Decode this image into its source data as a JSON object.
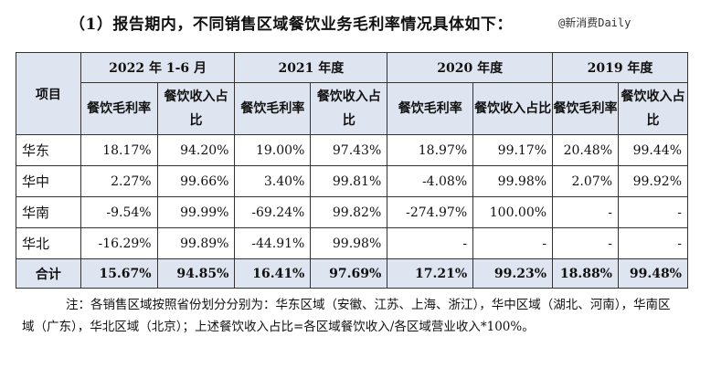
{
  "title": "（1）报告期内，不同销售区域餐饮业务毛利率情况具体如下：",
  "watermark": "@新消费Daily",
  "table": {
    "item_header": "项目",
    "periods": [
      "2022 年 1-6 月",
      "2021 年度",
      "2020 年度",
      "2019 年度"
    ],
    "subheaders": [
      "餐饮毛利率",
      "餐饮收入占比",
      "餐饮毛利率",
      "餐饮收入占比",
      "餐饮毛利率",
      "餐饮收入占比",
      "餐饮毛利率",
      "餐饮收入占比"
    ],
    "rows": [
      {
        "region": "华东",
        "values": [
          "18.17%",
          "94.20%",
          "19.00%",
          "97.43%",
          "18.97%",
          "99.17%",
          "20.48%",
          "99.44%"
        ]
      },
      {
        "region": "华中",
        "values": [
          "2.27%",
          "99.66%",
          "3.40%",
          "99.81%",
          "-4.08%",
          "99.98%",
          "2.07%",
          "99.92%"
        ]
      },
      {
        "region": "华南",
        "values": [
          "-9.54%",
          "99.99%",
          "-69.24%",
          "99.82%",
          "-274.97%",
          "100.00%",
          "-",
          "-"
        ]
      },
      {
        "region": "华北",
        "values": [
          "-16.29%",
          "99.89%",
          "-44.91%",
          "99.98%",
          "-",
          "-",
          "-",
          "-"
        ]
      }
    ],
    "total": {
      "region": "合计",
      "values": [
        "15.67%",
        "94.85%",
        "16.41%",
        "97.69%",
        "17.21%",
        "99.23%",
        "18.88%",
        "99.48%"
      ]
    }
  },
  "note": "注：各销售区域按照省份划分分别为：华东区域（安徽、江苏、上海、浙江），华中区域（湖北、河南），华南区域（广东），华北区域（北京）；上述餐饮收入占比=各区域餐饮收入/各区域营业收入*100%。"
}
